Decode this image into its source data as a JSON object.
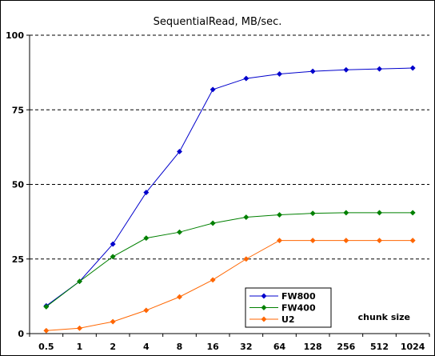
{
  "chart_data": {
    "type": "line",
    "title": "SequentialRead, MB/sec.",
    "xlabel": "",
    "ylabel": "",
    "categories": [
      "0.5",
      "1",
      "2",
      "4",
      "8",
      "16",
      "32",
      "64",
      "128",
      "256",
      "512",
      "1024"
    ],
    "ylim": [
      0,
      100
    ],
    "yticks": [
      "0",
      "25",
      "50",
      "75",
      "100"
    ],
    "grid": "horizontal dashed",
    "legend_position": "bottom-right",
    "annotation": "chunk size",
    "series": [
      {
        "name": "FW800",
        "color": "#0000cc",
        "marker": "diamond",
        "values": [
          9.3,
          17.5,
          30,
          47.3,
          61,
          81.8,
          85.5,
          87,
          87.9,
          88.4,
          88.7,
          89
        ]
      },
      {
        "name": "FW400",
        "color": "#008000",
        "marker": "diamond",
        "values": [
          9,
          17.5,
          25.8,
          32,
          34,
          37,
          39,
          39.8,
          40.3,
          40.5,
          40.5,
          40.5
        ]
      },
      {
        "name": "U2",
        "color": "#ff6600",
        "marker": "diamond",
        "values": [
          1,
          1.8,
          4,
          7.8,
          12.3,
          18,
          25,
          31.2,
          31.2,
          31.2,
          31.2,
          31.2
        ]
      }
    ]
  }
}
